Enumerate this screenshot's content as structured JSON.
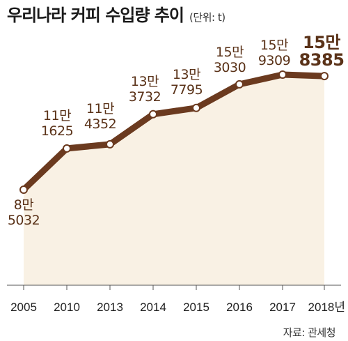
{
  "chart_data": {
    "type": "area",
    "title": "우리나라 커피 수입량 추이",
    "unit": "(단위: t)",
    "source": "자료: 관세청",
    "categories": [
      "2005",
      "2010",
      "2013",
      "2014",
      "2015",
      "2016",
      "2017",
      "2018년"
    ],
    "values": [
      85032,
      111625,
      114352,
      133732,
      137795,
      153030,
      159309,
      158385
    ],
    "labels": [
      [
        "8만",
        "5032"
      ],
      [
        "11만",
        "1625"
      ],
      [
        "11만",
        "4352"
      ],
      [
        "13만",
        "3732"
      ],
      [
        "13만",
        "7795"
      ],
      [
        "15만",
        "3030"
      ],
      [
        "15만",
        "9309"
      ],
      [
        "15만",
        "8385"
      ]
    ],
    "ylim": [
      0,
      160000
    ],
    "grid": false,
    "colors": {
      "line": "#6b3a1f",
      "area_fill": "#f9f1e4",
      "marker_fill": "#ffffff",
      "label_text": "#5a3218",
      "axis": "#555555"
    }
  }
}
